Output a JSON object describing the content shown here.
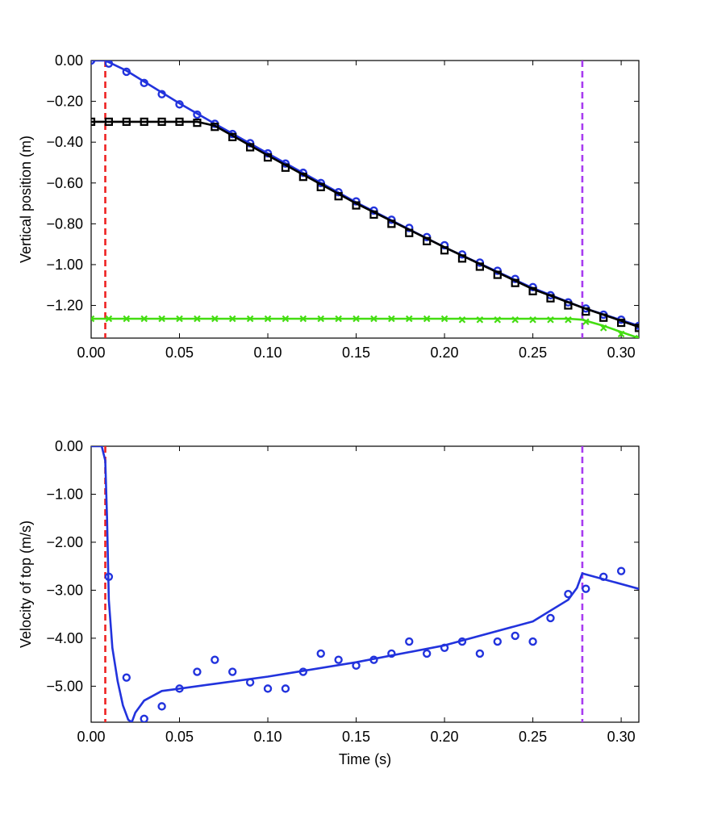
{
  "chart_data": [
    {
      "type": "line",
      "ylabel": "Vertical position (m)",
      "xlabel": "",
      "xlim": [
        0,
        0.31
      ],
      "ylim": [
        -1.36,
        0.0
      ],
      "xticks": [
        0.0,
        0.05,
        0.1,
        0.15,
        0.2,
        0.25,
        0.3
      ],
      "xtick_labels": [
        "0.00",
        "0.05",
        "0.10",
        "0.15",
        "0.20",
        "0.25",
        "0.30"
      ],
      "yticks": [
        0.0,
        -0.2,
        -0.4,
        -0.6,
        -0.8,
        -1.0,
        -1.2
      ],
      "ytick_labels": [
        "0.00",
        "−0.20",
        "−0.40",
        "−0.60",
        "−0.80",
        "−1.00",
        "−1.20"
      ],
      "vlines": [
        {
          "x": 0.008,
          "color": "#ee2222",
          "style": "dashed"
        },
        {
          "x": 0.278,
          "color": "#a83cf0",
          "style": "dashed"
        }
      ],
      "series": [
        {
          "color": "#2233dd",
          "marker": "circle",
          "kind": "curve",
          "x": [
            0,
            0.008,
            0.02,
            0.05,
            0.07,
            0.1,
            0.15,
            0.2,
            0.25,
            0.278,
            0.31
          ],
          "y": [
            0.0,
            0.0,
            -0.05,
            -0.21,
            -0.31,
            -0.455,
            -0.695,
            -0.915,
            -1.115,
            -1.21,
            -1.3
          ]
        },
        {
          "color": "#2233dd",
          "marker": "circle",
          "kind": "points",
          "x": [
            0.0,
            0.01,
            0.02,
            0.03,
            0.04,
            0.05,
            0.06,
            0.07,
            0.08,
            0.09,
            0.1,
            0.11,
            0.12,
            0.13,
            0.14,
            0.15,
            0.16,
            0.17,
            0.18,
            0.19,
            0.2,
            0.21,
            0.22,
            0.23,
            0.24,
            0.25,
            0.26,
            0.27,
            0.28,
            0.29,
            0.3,
            0.31
          ],
          "y": [
            0.0,
            -0.015,
            -0.055,
            -0.11,
            -0.165,
            -0.215,
            -0.265,
            -0.31,
            -0.36,
            -0.405,
            -0.455,
            -0.505,
            -0.55,
            -0.6,
            -0.645,
            -0.69,
            -0.735,
            -0.78,
            -0.82,
            -0.865,
            -0.905,
            -0.95,
            -0.99,
            -1.03,
            -1.07,
            -1.11,
            -1.15,
            -1.185,
            -1.215,
            -1.245,
            -1.27,
            -1.3
          ]
        },
        {
          "color": "#000000",
          "marker": "square",
          "kind": "curve",
          "x": [
            0.0,
            0.06,
            0.07,
            0.1,
            0.15,
            0.2,
            0.25,
            0.278,
            0.31
          ],
          "y": [
            -0.3,
            -0.3,
            -0.32,
            -0.465,
            -0.7,
            -0.915,
            -1.12,
            -1.21,
            -1.305
          ]
        },
        {
          "color": "#000000",
          "marker": "square",
          "kind": "points",
          "x": [
            0.0,
            0.01,
            0.02,
            0.03,
            0.04,
            0.05,
            0.06,
            0.07,
            0.08,
            0.09,
            0.1,
            0.11,
            0.12,
            0.13,
            0.14,
            0.15,
            0.16,
            0.17,
            0.18,
            0.19,
            0.2,
            0.21,
            0.22,
            0.23,
            0.24,
            0.25,
            0.26,
            0.27,
            0.28,
            0.29,
            0.3,
            0.31
          ],
          "y": [
            -0.3,
            -0.3,
            -0.3,
            -0.3,
            -0.3,
            -0.3,
            -0.305,
            -0.325,
            -0.375,
            -0.425,
            -0.475,
            -0.525,
            -0.57,
            -0.62,
            -0.665,
            -0.71,
            -0.755,
            -0.8,
            -0.845,
            -0.885,
            -0.93,
            -0.97,
            -1.01,
            -1.05,
            -1.09,
            -1.13,
            -1.165,
            -1.2,
            -1.23,
            -1.26,
            -1.285,
            -1.31
          ]
        },
        {
          "color": "#44dd11",
          "marker": "x",
          "kind": "curve",
          "x": [
            0.0,
            0.27,
            0.278,
            0.29,
            0.31
          ],
          "y": [
            -1.265,
            -1.265,
            -1.27,
            -1.3,
            -1.36
          ]
        },
        {
          "color": "#44dd11",
          "marker": "x",
          "kind": "points",
          "x": [
            0.0,
            0.01,
            0.02,
            0.03,
            0.04,
            0.05,
            0.06,
            0.07,
            0.08,
            0.09,
            0.1,
            0.11,
            0.12,
            0.13,
            0.14,
            0.15,
            0.16,
            0.17,
            0.18,
            0.19,
            0.2,
            0.21,
            0.22,
            0.23,
            0.24,
            0.25,
            0.26,
            0.27,
            0.28,
            0.29,
            0.3,
            0.31
          ],
          "y": [
            -1.265,
            -1.265,
            -1.265,
            -1.265,
            -1.265,
            -1.265,
            -1.265,
            -1.265,
            -1.265,
            -1.265,
            -1.265,
            -1.265,
            -1.265,
            -1.265,
            -1.265,
            -1.265,
            -1.265,
            -1.265,
            -1.265,
            -1.265,
            -1.265,
            -1.27,
            -1.27,
            -1.27,
            -1.27,
            -1.27,
            -1.27,
            -1.27,
            -1.28,
            -1.31,
            -1.34,
            -1.36
          ]
        }
      ]
    },
    {
      "type": "line",
      "ylabel": "Velocity of top (m/s)",
      "xlabel": "Time (s)",
      "xlim": [
        0,
        0.31
      ],
      "ylim": [
        -5.75,
        0.0
      ],
      "xticks": [
        0.0,
        0.05,
        0.1,
        0.15,
        0.2,
        0.25,
        0.3
      ],
      "xtick_labels": [
        "0.00",
        "0.05",
        "0.10",
        "0.15",
        "0.20",
        "0.25",
        "0.30"
      ],
      "yticks": [
        0.0,
        -1.0,
        -2.0,
        -3.0,
        -4.0,
        -5.0
      ],
      "ytick_labels": [
        "0.00",
        "−1.00",
        "−2.00",
        "−3.00",
        "−4.00",
        "−5.00"
      ],
      "vlines": [
        {
          "x": 0.008,
          "color": "#ee2222",
          "style": "dashed"
        },
        {
          "x": 0.278,
          "color": "#a83cf0",
          "style": "dashed"
        }
      ],
      "series": [
        {
          "color": "#2233dd",
          "marker": "circle",
          "kind": "curve",
          "x": [
            0.0,
            0.006,
            0.008,
            0.009,
            0.01,
            0.012,
            0.015,
            0.018,
            0.021,
            0.023,
            0.025,
            0.03,
            0.04,
            0.05,
            0.07,
            0.1,
            0.15,
            0.2,
            0.25,
            0.27,
            0.275,
            0.278,
            0.31
          ],
          "y": [
            0.0,
            0.0,
            -0.3,
            -1.5,
            -3.2,
            -4.2,
            -4.9,
            -5.4,
            -5.7,
            -5.75,
            -5.55,
            -5.3,
            -5.1,
            -5.05,
            -4.95,
            -4.8,
            -4.5,
            -4.15,
            -3.65,
            -3.2,
            -2.95,
            -2.65,
            -2.97
          ]
        },
        {
          "color": "#2233dd",
          "marker": "circle",
          "kind": "points",
          "x": [
            0.01,
            0.02,
            0.03,
            0.04,
            0.05,
            0.06,
            0.07,
            0.08,
            0.09,
            0.1,
            0.11,
            0.12,
            0.13,
            0.14,
            0.15,
            0.16,
            0.17,
            0.18,
            0.19,
            0.2,
            0.21,
            0.22,
            0.23,
            0.24,
            0.25,
            0.26,
            0.27,
            0.28,
            0.29,
            0.3
          ],
          "y": [
            -2.72,
            -4.82,
            -5.68,
            -5.42,
            -5.05,
            -4.7,
            -4.45,
            -4.7,
            -4.92,
            -5.05,
            -5.05,
            -4.7,
            -4.32,
            -4.45,
            -4.57,
            -4.45,
            -4.32,
            -4.07,
            -4.32,
            -4.2,
            -4.07,
            -4.32,
            -4.07,
            -3.95,
            -4.07,
            -3.58,
            -3.08,
            -2.97,
            -2.72,
            -2.6
          ]
        }
      ]
    }
  ]
}
